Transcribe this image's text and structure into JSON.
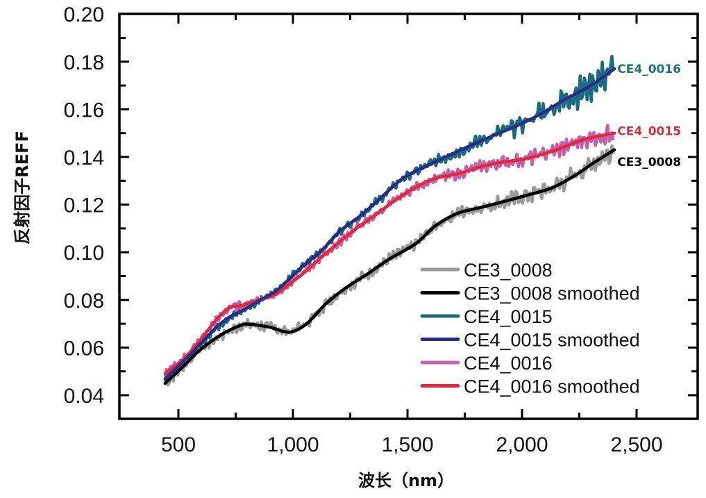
{
  "chart_data": {
    "type": "line",
    "title": "",
    "xlabel": "波长（nm）",
    "ylabel": "反射因子REFF",
    "xlim": [
      250,
      2800
    ],
    "ylim": [
      0.03,
      0.2
    ],
    "xticks": [
      500,
      1000,
      1500,
      2000,
      2500
    ],
    "xtick_labels": [
      "500",
      "1,000",
      "1,500",
      "2,000",
      "2,500"
    ],
    "xminor_ticks": [
      750,
      1250,
      1750,
      2250
    ],
    "yticks": [
      0.04,
      0.06,
      0.08,
      0.1,
      0.12,
      0.14,
      0.16,
      0.18,
      0.2
    ],
    "ytick_labels": [
      "0.04",
      "0.06",
      "0.08",
      "0.10",
      "0.12",
      "0.14",
      "0.16",
      "0.18",
      "0.20"
    ],
    "yminor_ticks": [
      0.05,
      0.07,
      0.09,
      0.11,
      0.13,
      0.15,
      0.17,
      0.19
    ],
    "grid": false,
    "legend_position": "bottom-right",
    "series": [
      {
        "name": "CE3_0008",
        "color": "#9a9a9a",
        "raw_of": "CE3_0008 smoothed",
        "noise_amplitude": [
          [
            440,
            0.002
          ],
          [
            1500,
            0.002
          ],
          [
            2000,
            0.003
          ],
          [
            2400,
            0.004
          ]
        ]
      },
      {
        "name": "CE3_0008 smoothed",
        "color": "#000000",
        "x": [
          442,
          520,
          591,
          680,
          773,
          821,
          900,
          985,
          1060,
          1145,
          1230,
          1327,
          1418,
          1539,
          1620,
          1721,
          1850,
          2024,
          2130,
          2227,
          2320,
          2403
        ],
        "y": [
          0.045,
          0.052,
          0.0587,
          0.065,
          0.0694,
          0.0697,
          0.0685,
          0.0665,
          0.07,
          0.0785,
          0.085,
          0.091,
          0.097,
          0.1038,
          0.111,
          0.1164,
          0.1195,
          0.124,
          0.127,
          0.132,
          0.138,
          0.143
        ]
      },
      {
        "name": "CE4_0015",
        "color": "#1b6b80",
        "raw_of": "CE4_0015 smoothed",
        "noise_amplitude": [
          [
            440,
            0.0015
          ],
          [
            1500,
            0.0015
          ],
          [
            1900,
            0.003
          ],
          [
            2100,
            0.005
          ],
          [
            2400,
            0.006
          ]
        ]
      },
      {
        "name": "CE4_0015 smoothed",
        "color": "#2a2d86",
        "x": [
          442,
          520,
          591,
          660,
          721,
          773,
          850,
          933,
          1030,
          1136,
          1206,
          1290,
          1367,
          1479,
          1600,
          1700,
          1803,
          1900,
          1985,
          2080,
          2185,
          2300,
          2403
        ],
        "y": [
          0.047,
          0.054,
          0.061,
          0.068,
          0.0727,
          0.0752,
          0.0795,
          0.0843,
          0.093,
          0.1018,
          0.109,
          0.115,
          0.1213,
          0.131,
          0.137,
          0.1415,
          0.146,
          0.15,
          0.1534,
          0.158,
          0.164,
          0.17,
          0.177
        ]
      },
      {
        "name": "CE4_0016",
        "color": "#c45fa9",
        "raw_of": "CE4_0016 smoothed",
        "noise_amplitude": [
          [
            440,
            0.0015
          ],
          [
            1500,
            0.0015
          ],
          [
            1900,
            0.0025
          ],
          [
            2200,
            0.003
          ],
          [
            2400,
            0.0035
          ]
        ]
      },
      {
        "name": "CE4_0016 smoothed",
        "color": "#e0283e",
        "x": [
          442,
          520,
          591,
          660,
          721,
          773,
          850,
          924,
          1030,
          1136,
          1276,
          1350,
          1439,
          1530,
          1620,
          1721,
          1864,
          2024,
          2150,
          2276,
          2403
        ],
        "y": [
          0.049,
          0.055,
          0.0625,
          0.071,
          0.0767,
          0.0776,
          0.08,
          0.0825,
          0.09,
          0.0989,
          0.11,
          0.115,
          0.1213,
          0.127,
          0.131,
          0.133,
          0.137,
          0.1394,
          0.143,
          0.1475,
          0.15
        ]
      }
    ],
    "annotations": [
      {
        "text": "CE4_0016",
        "color": "#1f6f85",
        "anchor_x": 2410,
        "anchor_y": 0.177
      },
      {
        "text": "CE4_0015",
        "color": "#cc3340",
        "anchor_x": 2410,
        "anchor_y": 0.151
      },
      {
        "text": "CE3_0008",
        "color": "#000000",
        "anchor_x": 2410,
        "anchor_y": 0.138
      }
    ]
  }
}
